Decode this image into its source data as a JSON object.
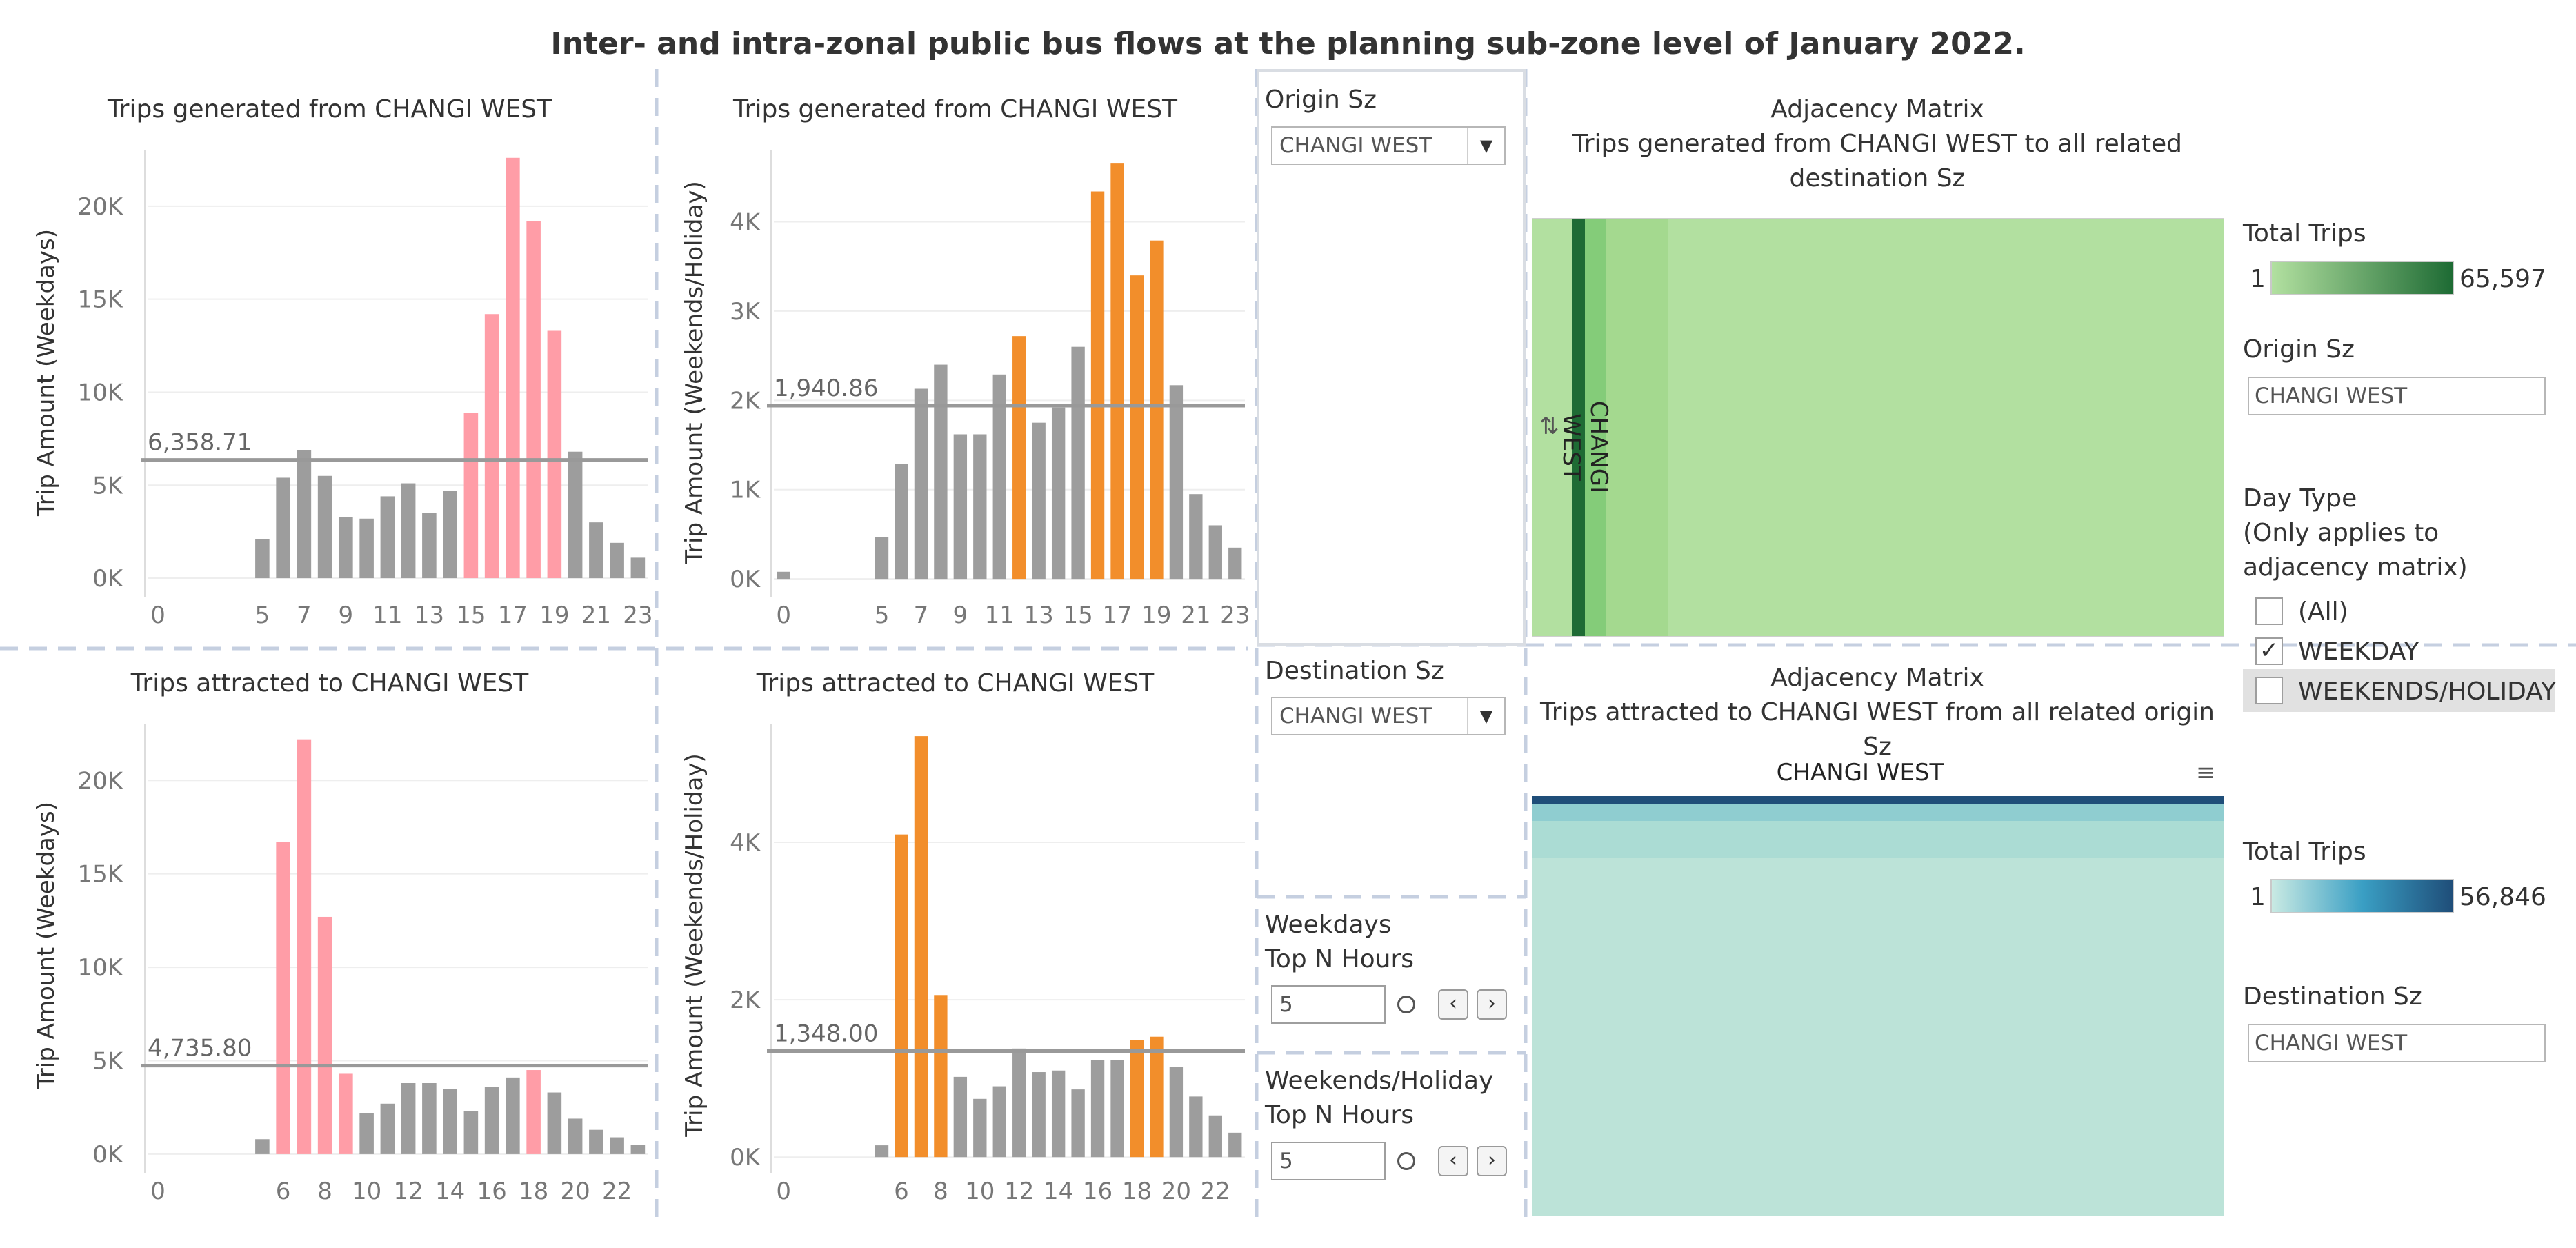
{
  "title": "Inter- and intra-zonal public bus flows at the planning sub-zone level of January 2022.",
  "charts": {
    "gen_weekday": {
      "title": "Trips generated from CHANGI WEST",
      "ylabel": "Trip Amount (Weekdays)",
      "ref_label": "6,358.71",
      "color": "#ff9da7",
      "gray": "#9d9d9d"
    },
    "gen_weekend": {
      "title": "Trips generated from CHANGI WEST",
      "ylabel": "Trip Amount (Weekends/Holiday)",
      "ref_label": "1,940.86",
      "color": "#f28e2b",
      "gray": "#9d9d9d"
    },
    "att_weekday": {
      "title": "Trips attracted to CHANGI WEST",
      "ylabel": "Trip Amount (Weekdays)",
      "ref_label": "4,735.80",
      "color": "#ff9da7",
      "gray": "#9d9d9d"
    },
    "att_weekend": {
      "title": "Trips attracted to CHANGI WEST",
      "ylabel": "Trip Amount (Weekends/Holiday)",
      "ref_label": "1,348.00",
      "color": "#f28e2b",
      "gray": "#9d9d9d"
    }
  },
  "chart_data": [
    {
      "type": "bar",
      "title": "Trips generated from CHANGI WEST",
      "xlabel": "",
      "ylabel": "Trip Amount (Weekdays)",
      "x": [
        0,
        1,
        2,
        3,
        4,
        5,
        6,
        7,
        8,
        9,
        10,
        11,
        12,
        13,
        14,
        15,
        16,
        17,
        18,
        19,
        20,
        21,
        22,
        23
      ],
      "xticks": [
        "0",
        "5",
        "7",
        "9",
        "11",
        "13",
        "15",
        "17",
        "19",
        "21",
        "23"
      ],
      "yticks": [
        "0K",
        "5K",
        "10K",
        "15K",
        "20K"
      ],
      "values": [
        0,
        0,
        0,
        0,
        0,
        2100,
        5400,
        6900,
        5500,
        3300,
        3200,
        4400,
        5100,
        3500,
        4700,
        8900,
        14200,
        22600,
        19200,
        13300,
        6800,
        3000,
        1900,
        1100
      ],
      "highlight": [
        15,
        16,
        17,
        18,
        19
      ],
      "reference_line": 6358.71,
      "ylim": [
        -1000,
        23000
      ]
    },
    {
      "type": "bar",
      "title": "Trips generated from CHANGI WEST",
      "xlabel": "",
      "ylabel": "Trip Amount (Weekends/Holiday)",
      "x": [
        0,
        1,
        2,
        3,
        4,
        5,
        6,
        7,
        8,
        9,
        10,
        11,
        12,
        13,
        14,
        15,
        16,
        17,
        18,
        19,
        20,
        21,
        22,
        23
      ],
      "xticks": [
        "0",
        "5",
        "7",
        "9",
        "11",
        "13",
        "15",
        "17",
        "19",
        "21",
        "23"
      ],
      "yticks": [
        "0K",
        "1K",
        "2K",
        "3K",
        "4K"
      ],
      "values": [
        80,
        0,
        0,
        0,
        0,
        470,
        1290,
        2130,
        2400,
        1620,
        1620,
        2290,
        2720,
        1750,
        1920,
        2600,
        4340,
        4660,
        3400,
        3790,
        2170,
        950,
        600,
        350
      ],
      "highlight": [
        12,
        16,
        17,
        18,
        19
      ],
      "reference_line": 1940.86,
      "ylim": [
        -200,
        4800
      ]
    },
    {
      "type": "bar",
      "title": "Trips attracted to CHANGI WEST",
      "xlabel": "",
      "ylabel": "Trip Amount (Weekdays)",
      "x": [
        0,
        1,
        2,
        3,
        4,
        5,
        6,
        7,
        8,
        9,
        10,
        11,
        12,
        13,
        14,
        15,
        16,
        17,
        18,
        19,
        20,
        21,
        22,
        23
      ],
      "xticks": [
        "0",
        "6",
        "8",
        "10",
        "12",
        "14",
        "16",
        "18",
        "20",
        "22"
      ],
      "yticks": [
        "0K",
        "5K",
        "10K",
        "15K",
        "20K"
      ],
      "values": [
        0,
        0,
        0,
        0,
        0,
        800,
        16700,
        22200,
        12700,
        4300,
        2200,
        2700,
        3800,
        3800,
        3500,
        2300,
        3600,
        4100,
        4500,
        3300,
        1900,
        1300,
        900,
        500
      ],
      "highlight": [
        6,
        7,
        8,
        9,
        18
      ],
      "reference_line": 4735.8,
      "ylim": [
        -1000,
        23000
      ]
    },
    {
      "type": "bar",
      "title": "Trips attracted to CHANGI WEST",
      "xlabel": "",
      "ylabel": "Trip Amount (Weekends/Holiday)",
      "x": [
        0,
        1,
        2,
        3,
        4,
        5,
        6,
        7,
        8,
        9,
        10,
        11,
        12,
        13,
        14,
        15,
        16,
        17,
        18,
        19,
        20,
        21,
        22,
        23
      ],
      "xticks": [
        "0",
        "6",
        "8",
        "10",
        "12",
        "14",
        "16",
        "18",
        "20",
        "22"
      ],
      "yticks": [
        "0K",
        "2K",
        "4K"
      ],
      "values": [
        0,
        0,
        0,
        0,
        0,
        150,
        4100,
        5350,
        2060,
        1020,
        740,
        900,
        1380,
        1080,
        1100,
        860,
        1230,
        1230,
        1490,
        1530,
        1150,
        770,
        530,
        310
      ],
      "highlight": [
        6,
        7,
        8,
        18,
        19
      ],
      "reference_line": 1348.0,
      "ylim": [
        -200,
        5500
      ]
    }
  ],
  "filters": {
    "origin_label": "Origin Sz",
    "origin_value": "CHANGI WEST",
    "destination_label": "Destination Sz",
    "destination_value": "CHANGI WEST",
    "weekday_topn_label_1": "Weekdays",
    "weekday_topn_label_2": "Top N Hours",
    "weekday_topn_value": "5",
    "weekend_topn_label_1": "Weekends/Holiday",
    "weekend_topn_label_2": "Top N Hours",
    "weekend_topn_value": "5"
  },
  "matrix_top": {
    "title_1": "Adjacency Matrix",
    "title_2": "Trips generated from CHANGI WEST to all related",
    "title_3": "destination Sz",
    "row_label": "CHANGI WEST",
    "legend_title": "Total Trips",
    "legend_min": "1",
    "legend_max": "65,597",
    "color_light": "#b2e0a0",
    "color_dark": "#1e6b34"
  },
  "matrix_bottom": {
    "title_1": "Adjacency Matrix",
    "title_2": "Trips attracted to  CHANGI WEST from all related origin Sz",
    "column_label": "CHANGI WEST",
    "legend_title": "Total Trips",
    "legend_min": "1",
    "legend_max": "56,846",
    "color_light": "#bce3d8",
    "color_dark": "#1f4e79"
  },
  "side_panel": {
    "origin_label": "Origin Sz",
    "origin_value": "CHANGI WEST",
    "daytype_label_1": "Day Type",
    "daytype_label_2": "(Only applies to",
    "daytype_label_3": "adjacency matrix)",
    "options": [
      {
        "label": "(All)",
        "checked": false
      },
      {
        "label": "WEEKDAY",
        "checked": true
      },
      {
        "label": "WEEKENDS/HOLIDAY",
        "checked": false
      }
    ],
    "destination_label": "Destination Sz",
    "destination_value": "CHANGI WEST",
    "check_mark": "✓"
  }
}
